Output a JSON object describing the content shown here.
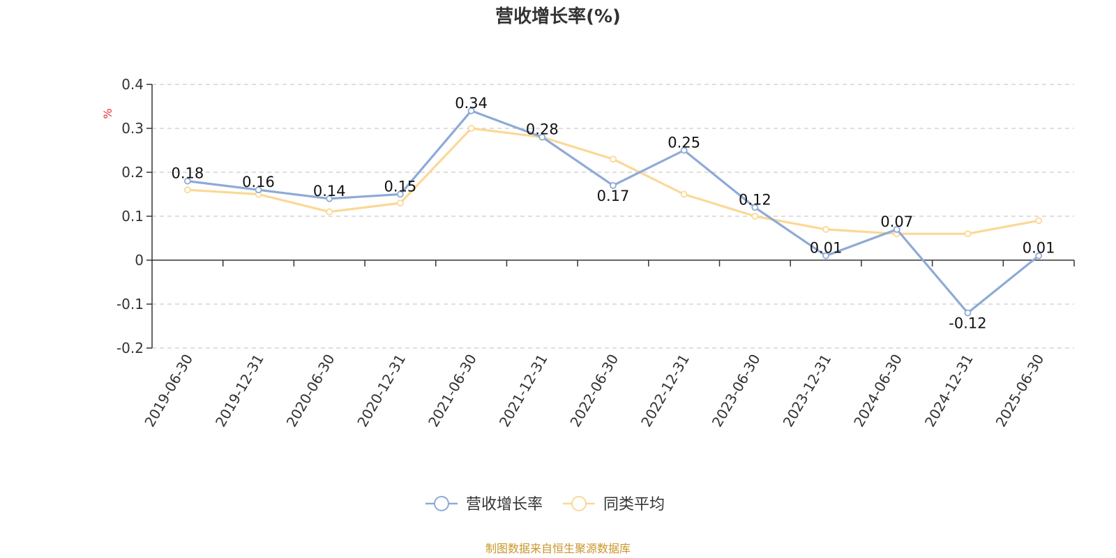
{
  "chart_data": {
    "type": "line",
    "title": "营收增长率(%)",
    "ylabel": "%",
    "xlabel": "",
    "ylim": [
      -0.2,
      0.4
    ],
    "yticks": [
      -0.2,
      -0.1,
      0,
      0.1,
      0.2,
      0.3,
      0.4
    ],
    "grid": true,
    "legend_position": "bottom-center",
    "categories": [
      "2019-06-30",
      "2019-12-31",
      "2020-06-30",
      "2020-12-31",
      "2021-06-30",
      "2021-12-31",
      "2022-06-30",
      "2022-12-31",
      "2023-06-30",
      "2023-12-31",
      "2024-06-30",
      "2024-12-31",
      "2025-06-30"
    ],
    "series": [
      {
        "name": "营收增长率",
        "color": "#8eaad6",
        "values": [
          0.18,
          0.16,
          0.14,
          0.15,
          0.34,
          0.28,
          0.17,
          0.25,
          0.12,
          0.01,
          0.07,
          -0.12,
          0.01
        ],
        "data_labels": [
          "0.18",
          "0.16",
          "0.14",
          "0.15",
          "0.34",
          "0.28",
          "0.17",
          "0.25",
          "0.12",
          "0.01",
          "0.07",
          "-0.12",
          "0.01"
        ]
      },
      {
        "name": "同类平均",
        "color": "#fbd896",
        "values": [
          0.16,
          0.15,
          0.11,
          0.13,
          0.3,
          0.28,
          0.23,
          0.15,
          0.1,
          0.07,
          0.06,
          0.06,
          0.09
        ]
      }
    ],
    "source": "制图数据来自恒生聚源数据库"
  }
}
